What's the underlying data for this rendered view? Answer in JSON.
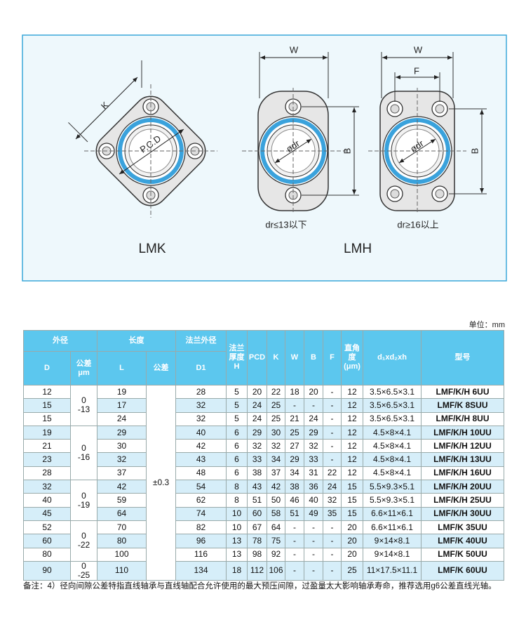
{
  "drawing": {
    "k": "K",
    "pcd": "P.C.D",
    "w1": "W",
    "b1": "B",
    "dr1": "ødr",
    "w2": "W",
    "f": "F",
    "b2": "B",
    "dr2": "ødr",
    "caption1": "dr≤13以下",
    "caption2": "dr≥16以上",
    "name1": "LMK",
    "name2": "LMH"
  },
  "table": {
    "unit": "单位：mm",
    "header": {
      "row1": [
        "外径",
        "长度",
        "法兰外径",
        "法兰\n厚度\nH",
        "PCD",
        "K",
        "W",
        "B",
        "F",
        "直角\n度\n(μm)",
        "d₁xd₂xh",
        "型号"
      ],
      "row2": [
        "D",
        "公差\nμm",
        "L",
        "公差",
        "D1"
      ]
    },
    "length_tolerance": "±0.3",
    "groups": [
      {
        "tolerance": [
          "0",
          "-13"
        ],
        "rows": [
          [
            12,
            19,
            28,
            5,
            20,
            22,
            18,
            20,
            "-",
            12,
            "3.5×6.5×3.1",
            "LMF/K/H 6UU"
          ],
          [
            15,
            17,
            32,
            5,
            24,
            25,
            "-",
            "-",
            "-",
            12,
            "3.5×6.5×3.1",
            "LMF/K 8SUU"
          ],
          [
            15,
            24,
            32,
            5,
            24,
            25,
            21,
            24,
            "-",
            12,
            "3.5×6.5×3.1",
            "LMF/K/H 8UU"
          ]
        ]
      },
      {
        "tolerance": [
          "0",
          "-16"
        ],
        "rows": [
          [
            19,
            29,
            40,
            6,
            29,
            30,
            25,
            29,
            "-",
            12,
            "4.5×8×4.1",
            "LMF/K/H 10UU"
          ],
          [
            21,
            30,
            42,
            6,
            32,
            32,
            27,
            32,
            "-",
            12,
            "4.5×8×4.1",
            "LMF/K/H 12UU"
          ],
          [
            23,
            32,
            43,
            6,
            33,
            34,
            29,
            33,
            "-",
            12,
            "4.5×8×4.1",
            "LMF/K/H 13UU"
          ],
          [
            28,
            37,
            48,
            6,
            38,
            37,
            34,
            31,
            22,
            12,
            "4.5×8×4.1",
            "LMF/K/H 16UU"
          ]
        ]
      },
      {
        "tolerance": [
          "0",
          "-19"
        ],
        "rows": [
          [
            32,
            42,
            54,
            8,
            43,
            42,
            38,
            36,
            24,
            15,
            "5.5×9.3×5.1",
            "LMF/K/H 20UU"
          ],
          [
            40,
            59,
            62,
            8,
            51,
            50,
            46,
            40,
            32,
            15,
            "5.5×9.3×5.1",
            "LMF/K/H 25UU"
          ],
          [
            45,
            64,
            74,
            10,
            60,
            58,
            51,
            49,
            35,
            15,
            "6.6×11×6.1",
            "LMF/K/H 30UU"
          ]
        ]
      },
      {
        "tolerance": [
          "0",
          "-22"
        ],
        "rows": [
          [
            52,
            70,
            82,
            10,
            67,
            64,
            "-",
            "-",
            "-",
            20,
            "6.6×11×6.1",
            "LMF/K 35UU"
          ],
          [
            60,
            80,
            96,
            13,
            78,
            75,
            "-",
            "-",
            "-",
            20,
            "9×14×8.1",
            "LMF/K 40UU"
          ],
          [
            80,
            100,
            116,
            13,
            98,
            92,
            "-",
            "-",
            "-",
            20,
            "9×14×8.1",
            "LMF/K 50UU"
          ]
        ]
      },
      {
        "tolerance": [
          "0",
          "-25"
        ],
        "rows": [
          [
            90,
            110,
            134,
            18,
            112,
            106,
            "-",
            "-",
            "-",
            25,
            "11×17.5×11.1",
            "LMF/K 60UU"
          ]
        ]
      }
    ]
  },
  "note": "备注：4）径向间隙公差特指直线轴承与直线轴配合允许使用的最大预压间隙，过盈量太大影响轴承寿命，推荐选用g6公差直线光轴。"
}
